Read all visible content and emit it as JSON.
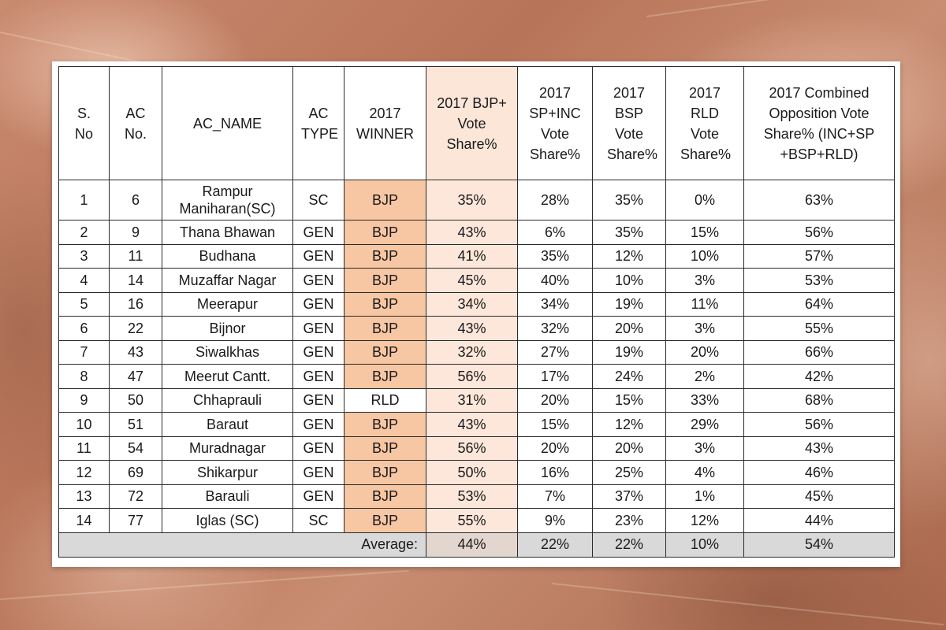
{
  "table": {
    "headers": [
      "S. No",
      "AC No.",
      "AC_NAME",
      "AC TYPE",
      "2017 WINNER",
      "2017 BJP+ Vote Share%",
      "2017 SP+INC Vote Share%",
      "2017 BSP Vote Share%",
      "2017 RLD Vote Share%",
      "2017 Combined Opposition Vote Share% (INC+SP +BSP+RLD)"
    ],
    "rows": [
      [
        "1",
        "6",
        "Rampur Maniharan(SC)",
        "SC",
        "BJP",
        "35%",
        "28%",
        "35%",
        "0%",
        "63%"
      ],
      [
        "2",
        "9",
        "Thana Bhawan",
        "GEN",
        "BJP",
        "43%",
        "6%",
        "35%",
        "15%",
        "56%"
      ],
      [
        "3",
        "11",
        "Budhana",
        "GEN",
        "BJP",
        "41%",
        "35%",
        "12%",
        "10%",
        "57%"
      ],
      [
        "4",
        "14",
        "Muzaffar Nagar",
        "GEN",
        "BJP",
        "45%",
        "40%",
        "10%",
        "3%",
        "53%"
      ],
      [
        "5",
        "16",
        "Meerapur",
        "GEN",
        "BJP",
        "34%",
        "34%",
        "19%",
        "11%",
        "64%"
      ],
      [
        "6",
        "22",
        "Bijnor",
        "GEN",
        "BJP",
        "43%",
        "32%",
        "20%",
        "3%",
        "55%"
      ],
      [
        "7",
        "43",
        "Siwalkhas",
        "GEN",
        "BJP",
        "32%",
        "27%",
        "19%",
        "20%",
        "66%"
      ],
      [
        "8",
        "47",
        "Meerut Cantt.",
        "GEN",
        "BJP",
        "56%",
        "17%",
        "24%",
        "2%",
        "42%"
      ],
      [
        "9",
        "50",
        "Chhaprauli",
        "GEN",
        "RLD",
        "31%",
        "20%",
        "15%",
        "33%",
        "68%"
      ],
      [
        "10",
        "51",
        "Baraut",
        "GEN",
        "BJP",
        "43%",
        "15%",
        "12%",
        "29%",
        "56%"
      ],
      [
        "11",
        "54",
        "Muradnagar",
        "GEN",
        "BJP",
        "56%",
        "20%",
        "20%",
        "3%",
        "43%"
      ],
      [
        "12",
        "69",
        "Shikarpur",
        "GEN",
        "BJP",
        "50%",
        "16%",
        "25%",
        "4%",
        "46%"
      ],
      [
        "13",
        "72",
        "Barauli",
        "GEN",
        "BJP",
        "53%",
        "7%",
        "37%",
        "1%",
        "45%"
      ],
      [
        "14",
        "77",
        "Iglas (SC)",
        "SC",
        "BJP",
        "55%",
        "9%",
        "23%",
        "12%",
        "44%"
      ]
    ],
    "footer": {
      "label": "Average:",
      "values": [
        "44%",
        "22%",
        "22%",
        "10%",
        "54%"
      ]
    }
  },
  "colors": {
    "paper_background": "#b87458",
    "bjp_winner_fill": "#f7c6a2",
    "bjp_column_fill": "#fde7da",
    "footer_fill": "#d9d9d9"
  }
}
